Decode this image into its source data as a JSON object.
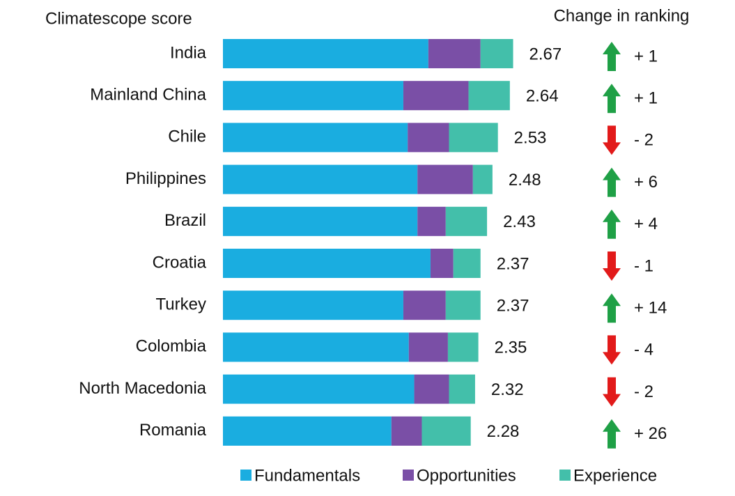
{
  "chart_data": {
    "type": "bar",
    "orientation": "horizontal",
    "stacked": true,
    "title": "Climatescope score",
    "categories": [
      "India",
      "Mainland China",
      "Chile",
      "Philippines",
      "Brazil",
      "Croatia",
      "Turkey",
      "Colombia",
      "North Macedonia",
      "Romania"
    ],
    "series": [
      {
        "name": "Fundamentals",
        "color": "#1aade0",
        "values": [
          1.89,
          1.66,
          1.7,
          1.79,
          1.79,
          1.91,
          1.66,
          1.71,
          1.76,
          1.55
        ]
      },
      {
        "name": "Opportunities",
        "color": "#7a4fa6",
        "values": [
          0.48,
          0.6,
          0.38,
          0.51,
          0.26,
          0.21,
          0.39,
          0.36,
          0.32,
          0.28
        ]
      },
      {
        "name": "Experience",
        "color": "#43bfaa",
        "values": [
          0.3,
          0.38,
          0.45,
          0.18,
          0.38,
          0.25,
          0.32,
          0.28,
          0.24,
          0.45
        ]
      }
    ],
    "totals": [
      2.67,
      2.64,
      2.53,
      2.48,
      2.43,
      2.37,
      2.37,
      2.35,
      2.32,
      2.28
    ],
    "change_in_ranking": {
      "title": "Change in ranking",
      "values": [
        1,
        1,
        -2,
        6,
        4,
        -1,
        14,
        -4,
        -2,
        26
      ],
      "value_labels": [
        "+ 1",
        "+ 1",
        "- 2",
        "+ 6",
        "+ 4",
        "- 1",
        "+ 14",
        "- 4",
        "- 2",
        "+ 26"
      ],
      "up_color": "#1fa046",
      "down_color": "#e21a1a"
    }
  }
}
